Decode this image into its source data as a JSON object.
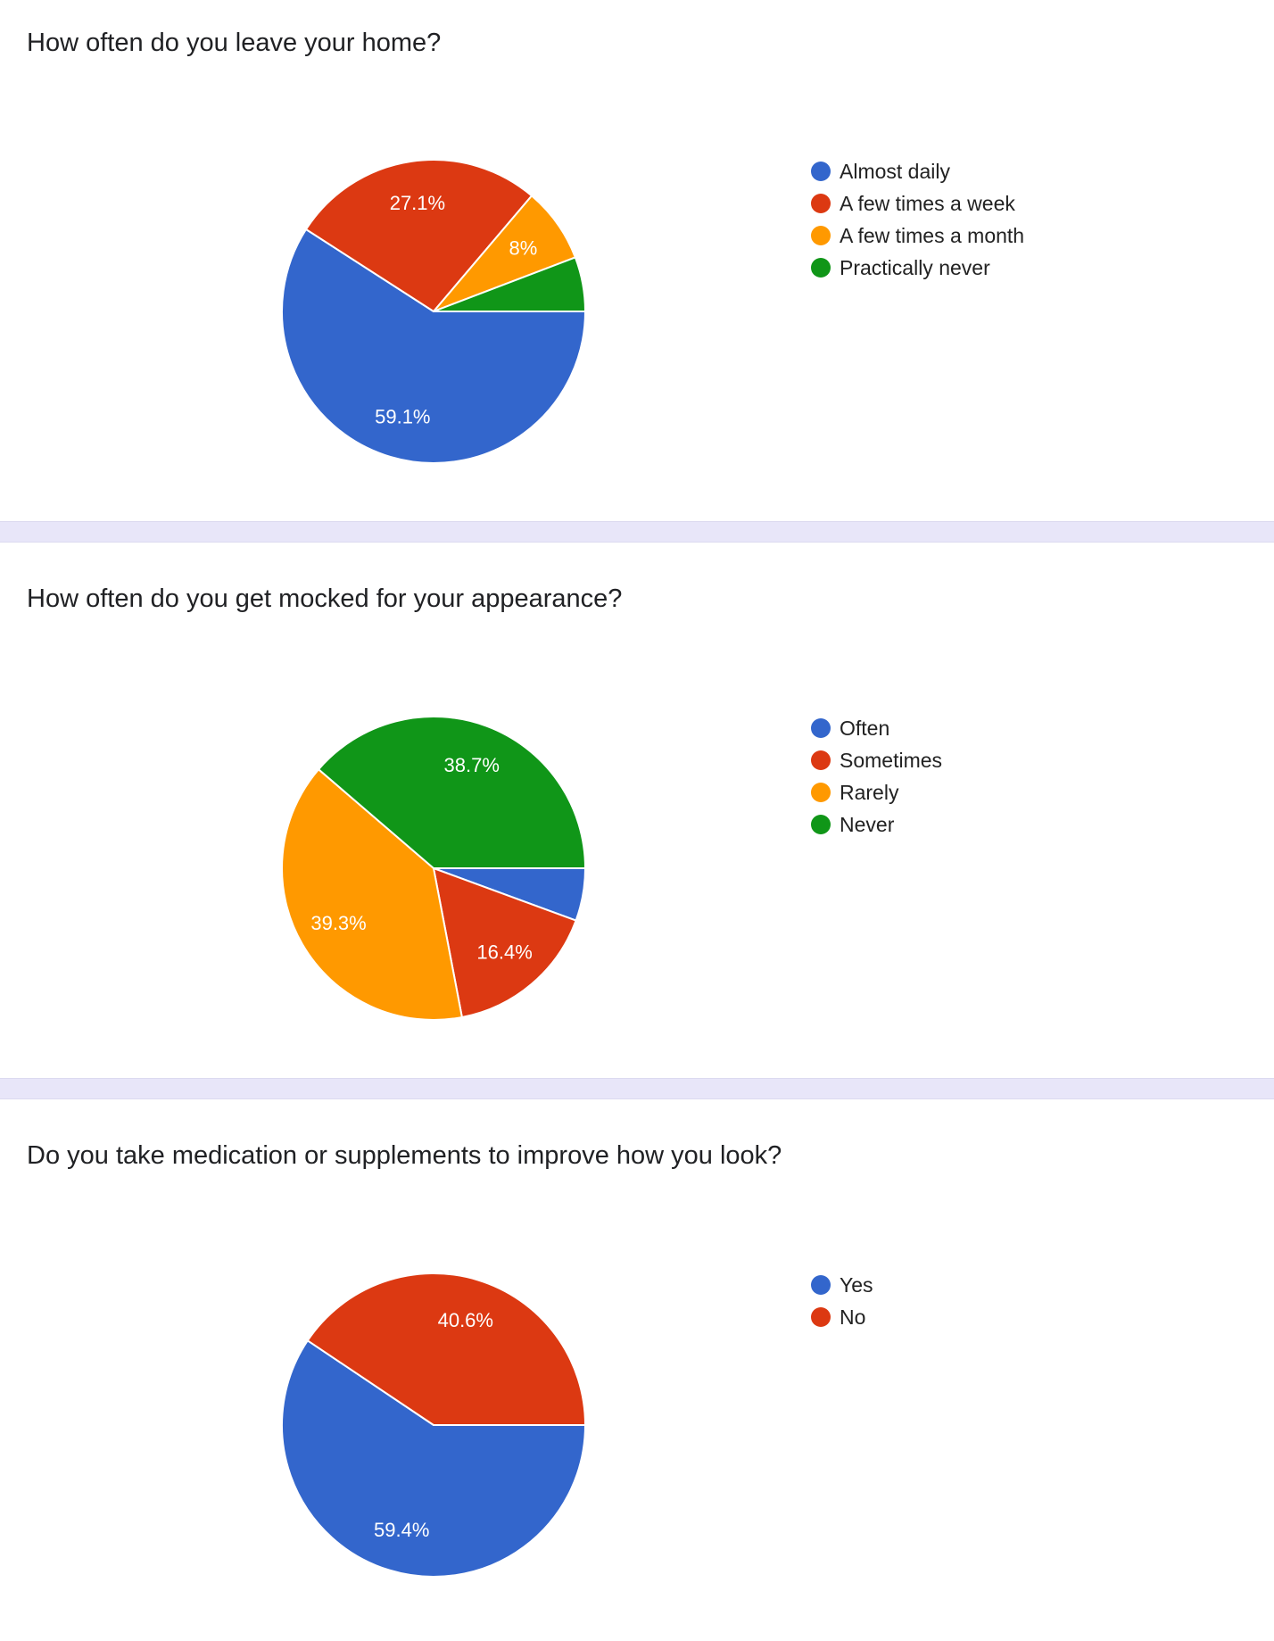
{
  "colors": {
    "blue": "#3366cc",
    "red": "#dc3912",
    "orange": "#ff9900",
    "green": "#109618"
  },
  "chart_data": [
    {
      "type": "pie",
      "title": "How often do you leave your home?",
      "categories": [
        "Almost daily",
        "A few times a week",
        "A few times a month",
        "Practically never"
      ],
      "values": [
        59.1,
        27.1,
        8.0,
        5.8
      ],
      "labels": [
        "59.1%",
        "27.1%",
        "8%",
        ""
      ],
      "colors": [
        "#3366cc",
        "#dc3912",
        "#ff9900",
        "#109618"
      ],
      "legend": "right"
    },
    {
      "type": "pie",
      "title": "How often do you get mocked for your appearance?",
      "categories": [
        "Often",
        "Sometimes",
        "Rarely",
        "Never"
      ],
      "values": [
        5.6,
        16.4,
        39.3,
        38.7
      ],
      "labels": [
        "",
        "16.4%",
        "39.3%",
        "38.7%"
      ],
      "colors": [
        "#3366cc",
        "#dc3912",
        "#ff9900",
        "#109618"
      ],
      "legend": "right"
    },
    {
      "type": "pie",
      "title": "Do you take medication or supplements to improve how you look?",
      "categories": [
        "Yes",
        "No"
      ],
      "values": [
        59.4,
        40.6
      ],
      "labels": [
        "59.4%",
        "40.6%"
      ],
      "colors": [
        "#3366cc",
        "#dc3912"
      ],
      "legend": "right"
    }
  ]
}
